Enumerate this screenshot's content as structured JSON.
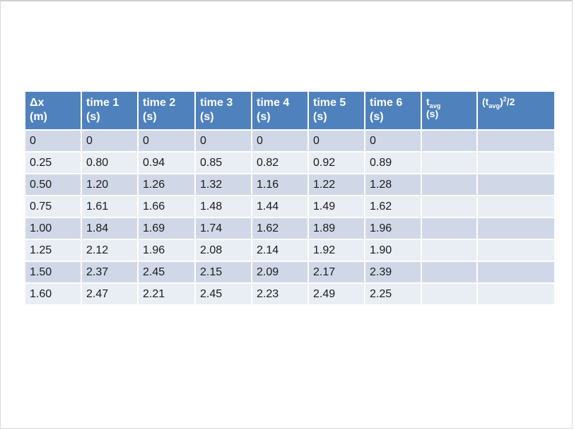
{
  "table": {
    "headers": [
      {
        "line1": "Δx",
        "line2": "(m)"
      },
      {
        "line1": "time 1",
        "line2": "(s)"
      },
      {
        "line1": "time 2",
        "line2": "(s)"
      },
      {
        "line1": "time 3",
        "line2": "(s)"
      },
      {
        "line1": "time 4",
        "line2": "(s)"
      },
      {
        "line1": "time 5",
        "line2": "(s)"
      },
      {
        "line1": "time 6",
        "line2": "(s)"
      },
      {
        "line1_main": "t",
        "line1_sub": "avg",
        "line2": "(s)"
      },
      {
        "open": "(t",
        "sub": "avg",
        "close": ")",
        "sup": "2",
        "tail": "/2"
      }
    ],
    "rows": [
      [
        "0",
        "0",
        "0",
        "0",
        "0",
        "0",
        "0",
        "",
        ""
      ],
      [
        "0.25",
        "0.80",
        "0.94",
        "0.85",
        "0.82",
        "0.92",
        "0.89",
        "",
        ""
      ],
      [
        "0.50",
        "1.20",
        "1.26",
        "1.32",
        "1.16",
        "1.22",
        "1.28",
        "",
        ""
      ],
      [
        "0.75",
        "1.61",
        "1.66",
        "1.48",
        "1.44",
        "1.49",
        "1.62",
        "",
        ""
      ],
      [
        "1.00",
        "1.84",
        "1.69",
        "1.74",
        "1.62",
        "1.89",
        "1.96",
        "",
        ""
      ],
      [
        "1.25",
        "2.12",
        "1.96",
        "2.08",
        "2.14",
        "1.92",
        "1.90",
        "",
        ""
      ],
      [
        "1.50",
        "2.37",
        "2.45",
        "2.15",
        "2.09",
        "2.17",
        "2.39",
        "",
        ""
      ],
      [
        "1.60",
        "2.47",
        "2.21",
        "2.45",
        "2.23",
        "2.49",
        "2.25",
        "",
        ""
      ]
    ],
    "colors": {
      "header_bg": "#4f81bd",
      "row_odd_bg": "#d0d8e8",
      "row_even_bg": "#e9edf4"
    }
  }
}
